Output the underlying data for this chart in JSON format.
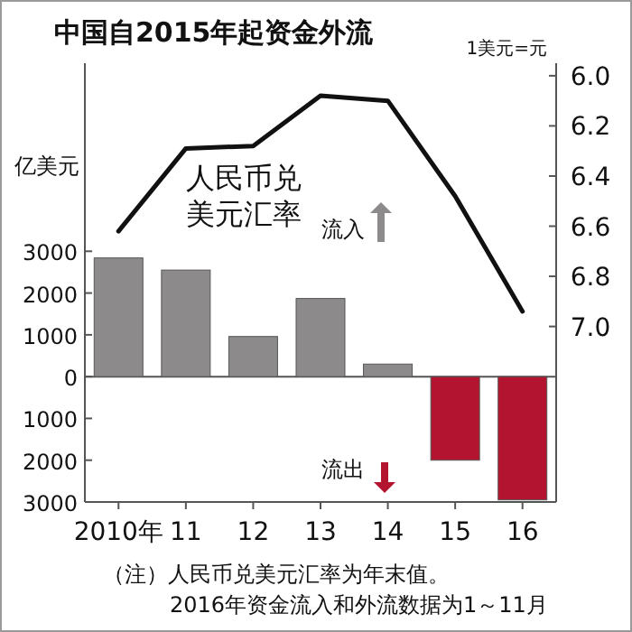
{
  "chart_data": {
    "type": "bar",
    "title": "中国自2015年起资金外流",
    "categories": [
      "2010年",
      "11",
      "12",
      "13",
      "14",
      "15",
      "16"
    ],
    "series": [
      {
        "colors": [
          "#8c8a8a",
          "#8c8a8a",
          "#8c8a8a",
          "#8c8a8a",
          "#8c8a8a",
          "#b31530",
          "#b31530"
        ],
        "values": [
          2840,
          2550,
          960,
          1870,
          300,
          -2000,
          -2950
        ]
      },
      {
        "type": "line",
        "axis": "y2",
        "name": "人民币兑美元汇率",
        "color": "#111111",
        "line_style": "solid",
        "values": [
          6.62,
          6.29,
          6.28,
          6.08,
          6.1,
          6.48,
          6.94
        ]
      }
    ],
    "ylabel": "亿美元",
    "y2label": "1美元=元",
    "ylim": [
      -3000,
      7500
    ],
    "yticks": [
      {
        "value": -3000,
        "label": "3000"
      },
      {
        "value": -2000,
        "label": "2000"
      },
      {
        "value": -1000,
        "label": "1000"
      },
      0,
      1000,
      2000,
      3000
    ],
    "y2lim": [
      7.7,
      5.95
    ],
    "y2ticks": [
      {
        "value": 6.0,
        "label": "6.0"
      },
      6.2,
      6.4,
      6.6,
      6.8,
      {
        "value": 7.0,
        "label": "7.0"
      }
    ],
    "annotations": [
      "流入",
      "流出",
      "（注）人民币兑美元汇率为年末值。",
      "2016年资金流入和外流数据为1～11月"
    ],
    "ref_lines": [
      {
        "axis": "y",
        "value": 0,
        "color": "#555555"
      }
    ],
    "grid": false,
    "legend": false,
    "marker": "none"
  }
}
